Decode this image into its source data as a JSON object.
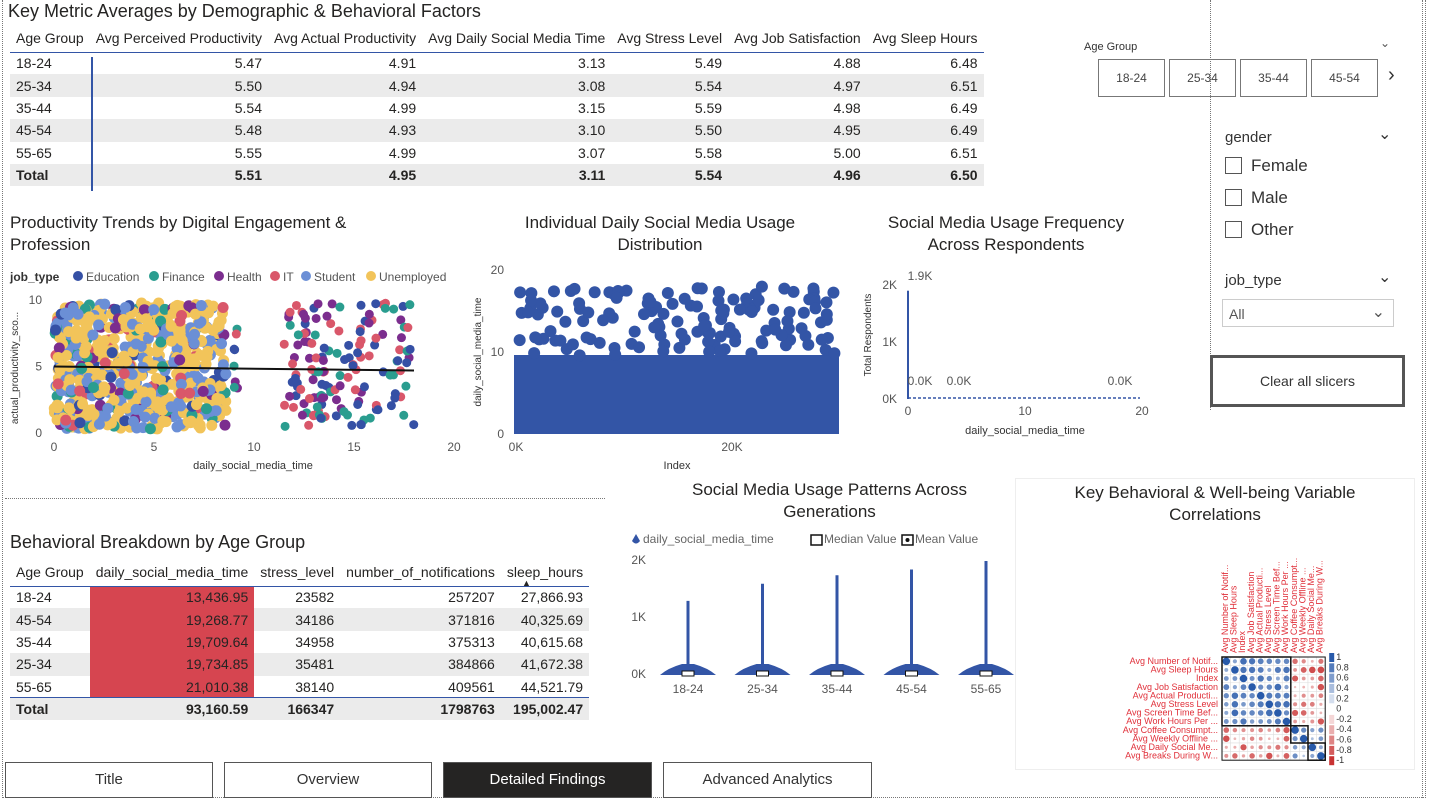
{
  "metrics_table": {
    "title": "Key Metric Averages by Demographic & Behavioral Factors",
    "headers": [
      "Age Group",
      "Avg Perceived Productivity",
      "Avg Actual Productivity",
      "Avg Daily Social Media Time",
      "Avg Stress Level",
      "Avg Job Satisfaction",
      "Avg Sleep Hours"
    ],
    "rows": [
      [
        "18-24",
        "5.47",
        "4.91",
        "3.13",
        "5.49",
        "4.88",
        "6.48"
      ],
      [
        "25-34",
        "5.50",
        "4.94",
        "3.08",
        "5.54",
        "4.97",
        "6.51"
      ],
      [
        "35-44",
        "5.54",
        "4.99",
        "3.15",
        "5.59",
        "4.98",
        "6.49"
      ],
      [
        "45-54",
        "5.48",
        "4.93",
        "3.10",
        "5.50",
        "4.95",
        "6.49"
      ],
      [
        "55-65",
        "5.55",
        "4.99",
        "3.07",
        "5.58",
        "5.00",
        "6.51"
      ]
    ],
    "total": [
      "Total",
      "5.51",
      "4.95",
      "3.11",
      "5.54",
      "4.96",
      "6.50"
    ]
  },
  "slicers": {
    "age_group": {
      "label": "Age Group",
      "options": [
        "18-24",
        "25-34",
        "35-44",
        "45-54"
      ]
    },
    "gender": {
      "label": "gender",
      "options": [
        "Female",
        "Male",
        "Other"
      ]
    },
    "job_type": {
      "label": "job_type",
      "value": "All"
    },
    "clear_button": "Clear all slicers"
  },
  "behavior_table": {
    "title": "Behavioral Breakdown by Age Group",
    "headers": [
      "Age Group",
      "daily_social_media_time",
      "stress_level",
      "number_of_notifications",
      "sleep_hours"
    ],
    "rows": [
      [
        "18-24",
        "13,436.95",
        "23582",
        "257207",
        "27,866.93"
      ],
      [
        "45-54",
        "19,268.77",
        "34186",
        "371816",
        "40,325.69"
      ],
      [
        "35-44",
        "19,709.64",
        "34958",
        "375313",
        "40,615.68"
      ],
      [
        "25-34",
        "19,734.85",
        "35481",
        "384866",
        "41,672.38"
      ],
      [
        "55-65",
        "21,010.38",
        "38140",
        "409561",
        "44,521.79"
      ]
    ],
    "total": [
      "Total",
      "93,160.59",
      "166347",
      "1798763",
      "195,002.47"
    ]
  },
  "tabs": [
    "Title",
    "Overview",
    "Detailed Findings",
    "Advanced Analytics"
  ],
  "active_tab": "Detailed Findings",
  "colors": {
    "education": "#3550a5",
    "finance": "#2a9d8f",
    "health": "#7b2d8e",
    "it": "#d9576a",
    "student": "#6b8fd6",
    "unemployed": "#f2c45a",
    "blue": "#3355a6",
    "red": "#d64550"
  },
  "chart_data": [
    {
      "type": "scatter",
      "title": "Productivity Trends by Digital Engagement & Profession",
      "xlabel": "daily_social_media_time",
      "ylabel": "actual_productivity_sco...",
      "legend_title": "job_type",
      "legend": [
        "Education",
        "Finance",
        "Health",
        "IT",
        "Student",
        "Unemployed"
      ],
      "xlim": [
        0,
        20
      ],
      "ylim": [
        0,
        10
      ],
      "xticks": [
        "0",
        "5",
        "10",
        "15",
        "20"
      ],
      "yticks": [
        "0",
        "5",
        "10"
      ],
      "trendline": {
        "x": [
          0,
          18
        ],
        "y": [
          5.0,
          4.7
        ]
      }
    },
    {
      "type": "scatter",
      "title": "Individual Daily Social Media Usage Distribution",
      "xlabel": "Index",
      "ylabel": "daily_social_media_time",
      "xticks": [
        "0K",
        "20K"
      ],
      "yticks": [
        "0",
        "10",
        "20"
      ],
      "ylim": [
        0,
        20
      ]
    },
    {
      "type": "bar",
      "title": "Social Media Usage Frequency Across Respondents",
      "xlabel": "daily_social_media_time",
      "ylabel": "Total Respondents",
      "xticks": [
        "0",
        "10",
        "20"
      ],
      "yticks": [
        "0K",
        "1K",
        "2K"
      ],
      "data_labels": [
        "1.9K",
        "0.0K",
        "0.0K",
        "0.0K"
      ],
      "values": [
        1900,
        0,
        0,
        0
      ]
    },
    {
      "type": "violin",
      "title": "Social Media Usage Patterns Across Generations",
      "legend": [
        "daily_social_media_time",
        "Median Value",
        "Mean Value"
      ],
      "categories": [
        "18-24",
        "25-34",
        "35-44",
        "45-54",
        "55-65"
      ],
      "peaks": [
        1300,
        1600,
        1750,
        1850,
        2000
      ],
      "yticks": [
        "0K",
        "1K",
        "2K"
      ],
      "ylim": [
        0,
        2000
      ]
    },
    {
      "type": "heatmap",
      "title": "Key Behavioral & Well-being Variable Correlations",
      "labels": [
        "Avg Number of Notif...",
        "Avg Sleep Hours",
        "Index",
        "Avg Job Satisfaction",
        "Avg Actual Producti...",
        "Avg Stress Level",
        "Avg Screen Time Bef...",
        "Avg Work Hours Per ...",
        "Avg Coffee Consumpt...",
        "Avg Weekly Offline ...",
        "Avg Daily Social Me...",
        "Avg Breaks During W..."
      ],
      "scale": [
        "1",
        "0.8",
        "0.6",
        "0.4",
        "0.2",
        "0",
        "-0.2",
        "-0.4",
        "-0.6",
        "-0.8",
        "-1"
      ]
    }
  ]
}
